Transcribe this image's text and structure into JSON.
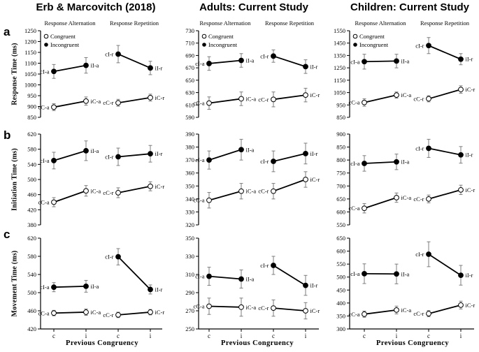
{
  "figure": {
    "column_titles": [
      "Erb & Marcovitch (2018)",
      "Adults: Current Study",
      "Children: Current Study"
    ],
    "row_letters": [
      "a",
      "b",
      "c"
    ],
    "row_ylabels": [
      "Response Time (ms)",
      "Initiation Time (ms)",
      "Movement Time (ms)"
    ],
    "x_axis_label": "Previous Congruency",
    "x_tick_labels": [
      "c",
      "i",
      "c",
      "i"
    ],
    "subpanel_titles": [
      "Response Alternation",
      "Response Repetition"
    ],
    "legend": [
      {
        "label": "Congruent",
        "marker": "open-circle"
      },
      {
        "label": "Incongruent",
        "marker": "filled-circle"
      }
    ],
    "colors": {
      "line": "#000000",
      "marker_fill": "#000000",
      "marker_open_fill": "#ffffff",
      "error_bar": "#7d7d7d",
      "text": "#000000",
      "axis": "#000000",
      "background": "#ffffff"
    }
  },
  "chart_data": [
    {
      "type": "line",
      "column": "Erb & Marcovitch (2018)",
      "row": "a",
      "ylabel": "Response Time (ms)",
      "ylim": [
        850,
        1250
      ],
      "ytick_step": 50,
      "x_categories": [
        "c",
        "i",
        "c",
        "i"
      ],
      "series": [
        {
          "name": "Incongruent (alternation)",
          "marker": "filled",
          "x_index": [
            0,
            1
          ],
          "labels": [
            "cI-a",
            "iI-a"
          ],
          "values": [
            1062,
            1090
          ],
          "errors": [
            32,
            36
          ]
        },
        {
          "name": "Congruent (alternation)",
          "marker": "open",
          "x_index": [
            0,
            1
          ],
          "labels": [
            "cC-a",
            "iC-a"
          ],
          "values": [
            897,
            925
          ],
          "errors": [
            16,
            19
          ]
        },
        {
          "name": "Incongruent (repetition)",
          "marker": "filled",
          "x_index": [
            2,
            3
          ],
          "labels": [
            "cI-r",
            "iI-r"
          ],
          "values": [
            1142,
            1078
          ],
          "errors": [
            40,
            31
          ]
        },
        {
          "name": "Congruent (repetition)",
          "marker": "open",
          "x_index": [
            2,
            3
          ],
          "labels": [
            "cC-r",
            "iC-r"
          ],
          "values": [
            917,
            941
          ],
          "errors": [
            16,
            16
          ]
        }
      ]
    },
    {
      "type": "line",
      "column": "Adults: Current Study",
      "row": "a",
      "ylabel": "Response Time (ms)",
      "ylim": [
        590,
        730
      ],
      "ytick_step": 20,
      "x_categories": [
        "c",
        "i",
        "c",
        "i"
      ],
      "series": [
        {
          "name": "Incongruent (alternation)",
          "marker": "filled",
          "x_index": [
            0,
            1
          ],
          "labels": [
            "cI-a",
            "iI-a"
          ],
          "values": [
            677,
            682
          ],
          "errors": [
            11,
            11
          ]
        },
        {
          "name": "Congruent (alternation)",
          "marker": "open",
          "x_index": [
            0,
            1
          ],
          "labels": [
            "cC-a",
            "iC-a"
          ],
          "values": [
            613,
            620
          ],
          "errors": [
            10,
            11
          ]
        },
        {
          "name": "Incongruent (repetition)",
          "marker": "filled",
          "x_index": [
            2,
            3
          ],
          "labels": [
            "cI-r",
            "iI-r"
          ],
          "values": [
            689,
            672
          ],
          "errors": [
            10,
            11
          ]
        },
        {
          "name": "Congruent (repetition)",
          "marker": "open",
          "x_index": [
            2,
            3
          ],
          "labels": [
            "cC-r",
            "iC-r"
          ],
          "values": [
            619,
            626
          ],
          "errors": [
            12,
            11
          ]
        }
      ]
    },
    {
      "type": "line",
      "column": "Children: Current Study",
      "row": "a",
      "ylabel": "Response Time (ms)",
      "ylim": [
        850,
        1550
      ],
      "ytick_step": 100,
      "x_categories": [
        "c",
        "i",
        "c",
        "i"
      ],
      "series": [
        {
          "name": "Incongruent (alternation)",
          "marker": "filled",
          "x_index": [
            0,
            1
          ],
          "labels": [
            "cI-a",
            "iI-a"
          ],
          "values": [
            1300,
            1305
          ],
          "errors": [
            60,
            55
          ]
        },
        {
          "name": "Congruent (alternation)",
          "marker": "open",
          "x_index": [
            0,
            1
          ],
          "labels": [
            "cC-a",
            "iC-a"
          ],
          "values": [
            970,
            1030
          ],
          "errors": [
            30,
            25
          ]
        },
        {
          "name": "Incongruent (repetition)",
          "marker": "filled",
          "x_index": [
            2,
            3
          ],
          "labels": [
            "cI-r",
            "iI-r"
          ],
          "values": [
            1430,
            1320
          ],
          "errors": [
            65,
            45
          ]
        },
        {
          "name": "Congruent (repetition)",
          "marker": "open",
          "x_index": [
            2,
            3
          ],
          "labels": [
            "cC-r",
            "iC-r"
          ],
          "values": [
            1000,
            1075
          ],
          "errors": [
            25,
            30
          ]
        }
      ]
    },
    {
      "type": "line",
      "column": "Erb & Marcovitch (2018)",
      "row": "b",
      "ylabel": "Initiation Time (ms)",
      "ylim": [
        380,
        620
      ],
      "ytick_step": 40,
      "x_categories": [
        "c",
        "i",
        "c",
        "i"
      ],
      "series": [
        {
          "name": "Incongruent (alternation)",
          "marker": "filled",
          "x_index": [
            0,
            1
          ],
          "labels": [
            "cI-a",
            "iI-a"
          ],
          "values": [
            550,
            576
          ],
          "errors": [
            22,
            26
          ]
        },
        {
          "name": "Congruent (alternation)",
          "marker": "open",
          "x_index": [
            0,
            1
          ],
          "labels": [
            "cC-a",
            "iC-a"
          ],
          "values": [
            440,
            470
          ],
          "errors": [
            12,
            14
          ]
        },
        {
          "name": "Incongruent (repetition)",
          "marker": "filled",
          "x_index": [
            2,
            3
          ],
          "labels": [
            "cI-r",
            "iI-r"
          ],
          "values": [
            560,
            568
          ],
          "errors": [
            23,
            22
          ]
        },
        {
          "name": "Congruent (repetition)",
          "marker": "open",
          "x_index": [
            2,
            3
          ],
          "labels": [
            "cC-r",
            "iC-r"
          ],
          "values": [
            465,
            482
          ],
          "errors": [
            13,
            12
          ]
        }
      ]
    },
    {
      "type": "line",
      "column": "Adults: Current Study",
      "row": "b",
      "ylabel": "Initiation Time (ms)",
      "ylim": [
        320,
        390
      ],
      "ytick_step": 10,
      "x_categories": [
        "c",
        "i",
        "c",
        "i"
      ],
      "series": [
        {
          "name": "Incongruent (alternation)",
          "marker": "filled",
          "x_index": [
            0,
            1
          ],
          "labels": [
            "cI-a",
            "iI-a"
          ],
          "values": [
            370,
            378
          ],
          "errors": [
            7,
            8
          ]
        },
        {
          "name": "Congruent (alternation)",
          "marker": "open",
          "x_index": [
            0,
            1
          ],
          "labels": [
            "cC-a",
            "iC-a"
          ],
          "values": [
            339,
            346
          ],
          "errors": [
            6,
            6
          ]
        },
        {
          "name": "Incongruent (repetition)",
          "marker": "filled",
          "x_index": [
            2,
            3
          ],
          "labels": [
            "cI-r",
            "iI-r"
          ],
          "values": [
            369,
            375
          ],
          "errors": [
            8,
            8
          ]
        },
        {
          "name": "Congruent (repetition)",
          "marker": "open",
          "x_index": [
            2,
            3
          ],
          "labels": [
            "cC-r",
            "iC-r"
          ],
          "values": [
            346,
            355
          ],
          "errors": [
            6,
            6
          ]
        }
      ]
    },
    {
      "type": "line",
      "column": "Children: Current Study",
      "row": "b",
      "ylabel": "Initiation Time (ms)",
      "ylim": [
        550,
        900
      ],
      "ytick_step": 50,
      "x_categories": [
        "c",
        "i",
        "c",
        "i"
      ],
      "series": [
        {
          "name": "Incongruent (alternation)",
          "marker": "filled",
          "x_index": [
            0,
            1
          ],
          "labels": [
            "cI-a",
            "iI-a"
          ],
          "values": [
            787,
            793
          ],
          "errors": [
            30,
            30
          ]
        },
        {
          "name": "Congruent (alternation)",
          "marker": "open",
          "x_index": [
            0,
            1
          ],
          "labels": [
            "cC-a",
            "iC-a"
          ],
          "values": [
            614,
            655
          ],
          "errors": [
            18,
            18
          ]
        },
        {
          "name": "Incongruent (repetition)",
          "marker": "filled",
          "x_index": [
            2,
            3
          ],
          "labels": [
            "cI-r",
            "iI-r"
          ],
          "values": [
            845,
            820
          ],
          "errors": [
            35,
            32
          ]
        },
        {
          "name": "Congruent (repetition)",
          "marker": "open",
          "x_index": [
            2,
            3
          ],
          "labels": [
            "cC-r",
            "iC-r"
          ],
          "values": [
            650,
            685
          ],
          "errors": [
            15,
            18
          ]
        }
      ]
    },
    {
      "type": "line",
      "column": "Erb & Marcovitch (2018)",
      "row": "c",
      "ylabel": "Movement Time (ms)",
      "ylim": [
        420,
        620
      ],
      "ytick_step": 40,
      "x_categories": [
        "c",
        "i",
        "c",
        "i"
      ],
      "series": [
        {
          "name": "Incongruent (alternation)",
          "marker": "filled",
          "x_index": [
            0,
            1
          ],
          "labels": [
            "cI-a",
            "iI-a"
          ],
          "values": [
            512,
            514
          ],
          "errors": [
            10,
            13
          ]
        },
        {
          "name": "Congruent (alternation)",
          "marker": "open",
          "x_index": [
            0,
            1
          ],
          "labels": [
            "cC-a",
            "iC-a"
          ],
          "values": [
            455,
            457
          ],
          "errors": [
            6,
            7
          ]
        },
        {
          "name": "Incongruent (repetition)",
          "marker": "filled",
          "x_index": [
            2,
            3
          ],
          "labels": [
            "cI-r",
            "iI-r"
          ],
          "values": [
            579,
            507
          ],
          "errors": [
            18,
            10
          ]
        },
        {
          "name": "Congruent (repetition)",
          "marker": "open",
          "x_index": [
            2,
            3
          ],
          "labels": [
            "cC-r",
            "iC-r"
          ],
          "values": [
            451,
            457
          ],
          "errors": [
            6,
            6
          ]
        }
      ]
    },
    {
      "type": "line",
      "column": "Adults: Current Study",
      "row": "c",
      "ylabel": "Movement Time (ms)",
      "ylim": [
        250,
        350
      ],
      "ytick_step": 20,
      "x_categories": [
        "c",
        "i",
        "c",
        "i"
      ],
      "series": [
        {
          "name": "Incongruent (alternation)",
          "marker": "filled",
          "x_index": [
            0,
            1
          ],
          "labels": [
            "cI-a",
            "iI-a"
          ],
          "values": [
            308,
            305
          ],
          "errors": [
            10,
            10
          ]
        },
        {
          "name": "Congruent (alternation)",
          "marker": "open",
          "x_index": [
            0,
            1
          ],
          "labels": [
            "cC-a",
            "iC-a"
          ],
          "values": [
            275,
            274
          ],
          "errors": [
            9,
            10
          ]
        },
        {
          "name": "Incongruent (repetition)",
          "marker": "filled",
          "x_index": [
            2,
            3
          ],
          "labels": [
            "cI-r",
            "iI-r"
          ],
          "values": [
            320,
            298
          ],
          "errors": [
            10,
            11
          ]
        },
        {
          "name": "Congruent (repetition)",
          "marker": "open",
          "x_index": [
            2,
            3
          ],
          "labels": [
            "cC-r",
            "iC-r"
          ],
          "values": [
            273,
            270
          ],
          "errors": [
            9,
            9
          ]
        }
      ]
    },
    {
      "type": "line",
      "column": "Children: Current Study",
      "row": "c",
      "ylabel": "Movement Time (ms)",
      "ylim": [
        300,
        650
      ],
      "ytick_step": 50,
      "x_categories": [
        "c",
        "i",
        "c",
        "i"
      ],
      "series": [
        {
          "name": "Incongruent (alternation)",
          "marker": "filled",
          "x_index": [
            0,
            1
          ],
          "labels": [
            "cI-a",
            "iI-a"
          ],
          "values": [
            513,
            512
          ],
          "errors": [
            38,
            38
          ]
        },
        {
          "name": "Congruent (alternation)",
          "marker": "open",
          "x_index": [
            0,
            1
          ],
          "labels": [
            "cC-a",
            "iC-a"
          ],
          "values": [
            357,
            373
          ],
          "errors": [
            12,
            15
          ]
        },
        {
          "name": "Incongruent (repetition)",
          "marker": "filled",
          "x_index": [
            2,
            3
          ],
          "labels": [
            "cI-r",
            "iI-r"
          ],
          "values": [
            588,
            507
          ],
          "errors": [
            48,
            38
          ]
        },
        {
          "name": "Congruent (repetition)",
          "marker": "open",
          "x_index": [
            2,
            3
          ],
          "labels": [
            "cC-r",
            "iC-r"
          ],
          "values": [
            359,
            392
          ],
          "errors": [
            12,
            15
          ]
        }
      ]
    }
  ]
}
